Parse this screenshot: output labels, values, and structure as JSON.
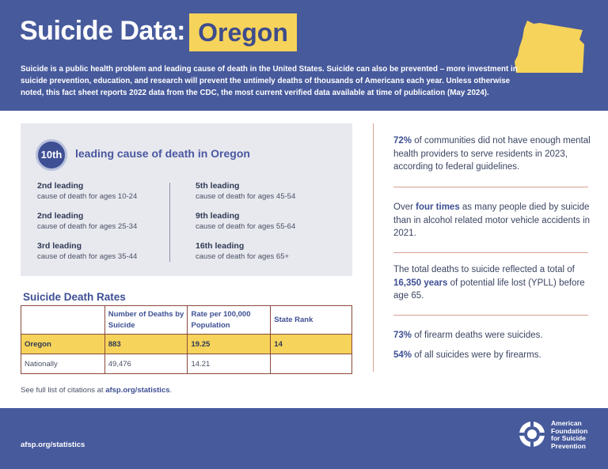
{
  "header": {
    "title": "Suicide Data:",
    "state": "Oregon",
    "intro": "Suicide is a public health problem and leading cause of death in the United States. Suicide can also be prevented – more investment in suicide prevention, education, and research will prevent the untimely deaths of thousands of Americans each year. Unless otherwise noted, this fact sheet reports 2022 data from the CDC, the most current verified data available at time of publication (May 2024)."
  },
  "leading_cause": {
    "rank": "10th",
    "title": "leading cause of death in Oregon",
    "left": [
      {
        "rank": "2nd leading",
        "desc": "cause of death for ages 10-24"
      },
      {
        "rank": "2nd leading",
        "desc": "cause of death for ages 25-34"
      },
      {
        "rank": "3rd leading",
        "desc": "cause of death for ages 35-44"
      }
    ],
    "right": [
      {
        "rank": "5th leading",
        "desc": "cause of death for ages 45-54"
      },
      {
        "rank": "9th leading",
        "desc": "cause of death for ages 55-64"
      },
      {
        "rank": "16th leading",
        "desc": "cause of death for ages 65+"
      }
    ]
  },
  "rates": {
    "title": "Suicide Death Rates",
    "headers": [
      "",
      "Number of Deaths by Suicide",
      "Rate per 100,000 Population",
      "State Rank"
    ],
    "rows": [
      [
        "Oregon",
        "883",
        "19.25",
        "14"
      ],
      [
        "Nationally",
        "49,476",
        "14.21",
        ""
      ]
    ]
  },
  "citation": {
    "prefix": "See full list of citations at ",
    "link": "afsp.org/statistics",
    "suffix": "."
  },
  "stats": [
    {
      "bold": "72%",
      "text": " of communities did not have enough mental health providers to serve residents in 2023, according to federal guidelines."
    },
    {
      "pre": "Over ",
      "bold": "four times",
      "text": " as many people died by suicide than in alcohol related motor vehicle accidents in 2021."
    },
    {
      "pre": "The total deaths to suicide reflected a total of ",
      "bold": "16,350 years",
      "text": " of potential life lost (YPLL) before age 65."
    },
    {
      "bold": "73%",
      "text": " of firearm deaths were suicides."
    },
    {
      "bold": "54%",
      "text": " of all suicides were by firearms."
    }
  ],
  "footer": {
    "url": "afsp.org/statistics",
    "logo_lines": [
      "American",
      "Foundation",
      "for Suicide",
      "Prevention"
    ]
  },
  "colors": {
    "brand_blue": "#475a9c",
    "accent_yellow": "#f6d35a",
    "panel_gray": "#e8e9ee"
  }
}
